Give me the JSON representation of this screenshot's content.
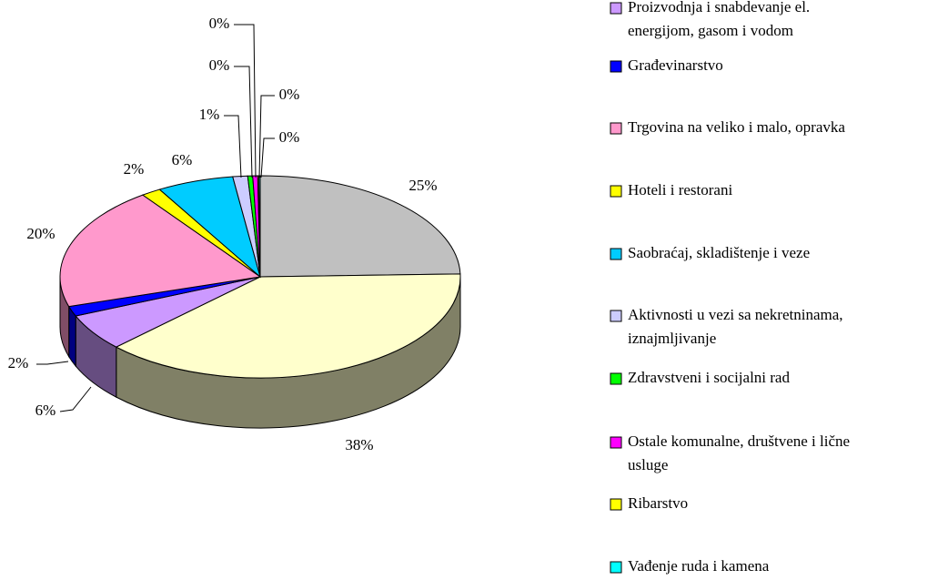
{
  "chart_data": {
    "type": "pie",
    "categories": [
      null,
      null,
      "Proizvodnja i snabdevanje el. energijom, gasom i vodom",
      "Građevinarstvo",
      "Trgovina na veliko i malo, opravka",
      "Hoteli i restorani",
      "Saobraćaj, skladištenje i veze",
      "Aktivnosti u vezi sa nekretninama, iznajmljivanje",
      "Zdravstveni i socijalni rad",
      "Ostale komunalne, društvene i lične usluge",
      "Ribarstvo",
      "Vađenje ruda i kamena"
    ],
    "values": [
      24.6,
      38.3,
      5.9,
      1.6,
      19.8,
      1.6,
      6.2,
      1.2,
      0.4,
      0.4,
      0.1,
      0.1
    ],
    "value_labels": [
      "25%",
      "38%",
      "6%",
      "2%",
      "20%",
      "2%",
      "6%",
      "1%",
      "0%",
      "0%",
      "0%",
      "0%"
    ],
    "colors": [
      "#C0C0C0",
      "#FFFFCC",
      "#CC99FF",
      "#0000FF",
      "#FF99CC",
      "#FFFF00",
      "#00CCFF",
      "#CCCCFF",
      "#00FF00",
      "#FF00FF",
      "#FFFF00",
      "#00FFFF"
    ],
    "three_d": true
  }
}
